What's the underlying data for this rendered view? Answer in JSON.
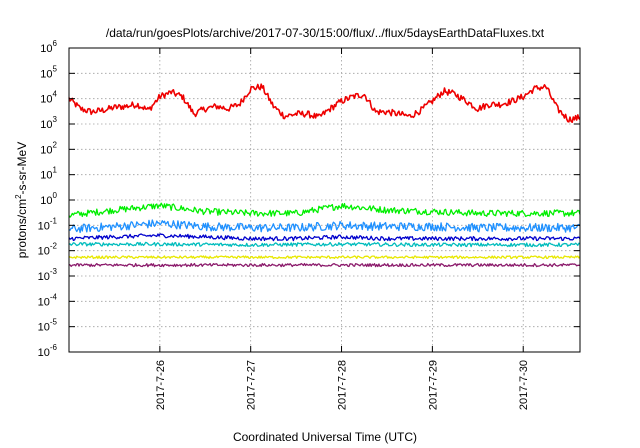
{
  "chart_data": {
    "type": "line",
    "title": "/data/run/goesPlots/archive/2017-07-30/15:00/flux/../flux/5daysEarthDataFluxes.txt",
    "xlabel": "Coordinated Universal Time (UTC)",
    "ylabel_parts": [
      "protons/cm",
      "2",
      "-s-sr-MeV"
    ],
    "y_scale": "log",
    "ylim": [
      1e-06,
      1000000.0
    ],
    "y_ticks": [
      {
        "base": "10",
        "exp": "-6",
        "value": 1e-06
      },
      {
        "base": "10",
        "exp": "-5",
        "value": 1e-05
      },
      {
        "base": "10",
        "exp": "-4",
        "value": 0.0001
      },
      {
        "base": "10",
        "exp": "-3",
        "value": 0.001
      },
      {
        "base": "10",
        "exp": "-2",
        "value": 0.01
      },
      {
        "base": "10",
        "exp": "-1",
        "value": 0.1
      },
      {
        "base": "10",
        "exp": "0",
        "value": 1
      },
      {
        "base": "10",
        "exp": "1",
        "value": 10
      },
      {
        "base": "10",
        "exp": "2",
        "value": 100
      },
      {
        "base": "10",
        "exp": "3",
        "value": 1000
      },
      {
        "base": "10",
        "exp": "4",
        "value": 10000
      },
      {
        "base": "10",
        "exp": "5",
        "value": 100000
      },
      {
        "base": "10",
        "exp": "6",
        "value": 1000000
      }
    ],
    "xlim": [
      "2017-07-25T00:00",
      "2017-07-30T15:00"
    ],
    "x_ticks": [
      "2017-7-26",
      "2017-7-27",
      "2017-7-28",
      "2017-7-29",
      "2017-7-30"
    ],
    "grid": true,
    "series": [
      {
        "color": "#ee0000",
        "x": [
          "2017-07-25T00:00",
          "2017-07-25T03:00",
          "2017-07-25T06:00",
          "2017-07-25T09:00",
          "2017-07-25T12:00",
          "2017-07-25T15:00",
          "2017-07-25T18:00",
          "2017-07-25T21:00",
          "2017-07-26T00:00",
          "2017-07-26T03:00",
          "2017-07-26T06:00",
          "2017-07-26T09:00",
          "2017-07-26T12:00",
          "2017-07-26T15:00",
          "2017-07-26T18:00",
          "2017-07-26T21:00",
          "2017-07-27T00:00",
          "2017-07-27T03:00",
          "2017-07-27T06:00",
          "2017-07-27T09:00",
          "2017-07-27T12:00",
          "2017-07-27T15:00",
          "2017-07-27T18:00",
          "2017-07-27T21:00",
          "2017-07-28T00:00",
          "2017-07-28T03:00",
          "2017-07-28T06:00",
          "2017-07-28T09:00",
          "2017-07-28T12:00",
          "2017-07-28T15:00",
          "2017-07-28T18:00",
          "2017-07-28T21:00",
          "2017-07-29T00:00",
          "2017-07-29T03:00",
          "2017-07-29T06:00",
          "2017-07-29T09:00",
          "2017-07-29T12:00",
          "2017-07-29T15:00",
          "2017-07-29T18:00",
          "2017-07-29T21:00",
          "2017-07-30T00:00",
          "2017-07-30T03:00",
          "2017-07-30T06:00",
          "2017-07-30T09:00",
          "2017-07-30T12:00",
          "2017-07-30T15:00"
        ],
        "y": [
          10000,
          4000,
          3000,
          3500,
          4500,
          5000,
          6000,
          3500,
          12000,
          18000,
          12000,
          2500,
          4000,
          5000,
          4000,
          6000,
          25000,
          30000,
          5000,
          2000,
          2500,
          2500,
          1800,
          4000,
          8000,
          12000,
          15000,
          3000,
          3000,
          2500,
          2000,
          3500,
          8000,
          20000,
          15000,
          8000,
          4000,
          6000,
          6000,
          8000,
          12000,
          25000,
          30000,
          4000,
          1500,
          1800
        ],
        "noise": 0.13
      },
      {
        "color": "#00ee00",
        "x": [
          "2017-07-25T00:00",
          "2017-07-25T12:00",
          "2017-07-26T00:00",
          "2017-07-26T12:00",
          "2017-07-27T00:00",
          "2017-07-27T12:00",
          "2017-07-28T00:00",
          "2017-07-28T12:00",
          "2017-07-29T00:00",
          "2017-07-29T12:00",
          "2017-07-30T00:00",
          "2017-07-30T15:00"
        ],
        "y": [
          0.25,
          0.4,
          0.6,
          0.35,
          0.3,
          0.3,
          0.6,
          0.4,
          0.35,
          0.3,
          0.3,
          0.3
        ],
        "noise": 0.13
      },
      {
        "color": "#1e90ff",
        "x": [
          "2017-07-25T00:00",
          "2017-07-25T12:00",
          "2017-07-26T00:00",
          "2017-07-26T12:00",
          "2017-07-27T00:00",
          "2017-07-27T12:00",
          "2017-07-28T00:00",
          "2017-07-28T12:00",
          "2017-07-29T00:00",
          "2017-07-29T12:00",
          "2017-07-30T00:00",
          "2017-07-30T15:00"
        ],
        "y": [
          0.07,
          0.09,
          0.12,
          0.09,
          0.08,
          0.08,
          0.1,
          0.09,
          0.09,
          0.08,
          0.08,
          0.08
        ],
        "noise": 0.17
      },
      {
        "color": "#0000cc",
        "x": [
          "2017-07-25T00:00",
          "2017-07-25T12:00",
          "2017-07-26T00:00",
          "2017-07-26T12:00",
          "2017-07-27T00:00",
          "2017-07-27T12:00",
          "2017-07-28T00:00",
          "2017-07-28T12:00",
          "2017-07-29T00:00",
          "2017-07-29T12:00",
          "2017-07-30T00:00",
          "2017-07-30T15:00"
        ],
        "y": [
          0.03,
          0.035,
          0.04,
          0.035,
          0.03,
          0.03,
          0.035,
          0.03,
          0.03,
          0.03,
          0.03,
          0.03
        ],
        "noise": 0.08
      },
      {
        "color": "#00bcbc",
        "x": [
          "2017-07-25T00:00",
          "2017-07-26T00:00",
          "2017-07-27T00:00",
          "2017-07-28T00:00",
          "2017-07-29T00:00",
          "2017-07-30T00:00",
          "2017-07-30T15:00"
        ],
        "y": [
          0.018,
          0.018,
          0.017,
          0.018,
          0.017,
          0.017,
          0.017
        ],
        "noise": 0.07
      },
      {
        "color": "#e8e800",
        "x": [
          "2017-07-25T00:00",
          "2017-07-26T00:00",
          "2017-07-27T00:00",
          "2017-07-28T00:00",
          "2017-07-29T00:00",
          "2017-07-30T00:00",
          "2017-07-30T15:00"
        ],
        "y": [
          0.0055,
          0.0055,
          0.0055,
          0.0055,
          0.0055,
          0.0055,
          0.0055
        ],
        "noise": 0.05
      },
      {
        "color": "#8b1a6b",
        "x": [
          "2017-07-25T00:00",
          "2017-07-26T00:00",
          "2017-07-27T00:00",
          "2017-07-28T00:00",
          "2017-07-29T00:00",
          "2017-07-30T00:00",
          "2017-07-30T15:00"
        ],
        "y": [
          0.0027,
          0.0027,
          0.0027,
          0.0027,
          0.0027,
          0.0027,
          0.0027
        ],
        "noise": 0.06
      }
    ]
  }
}
